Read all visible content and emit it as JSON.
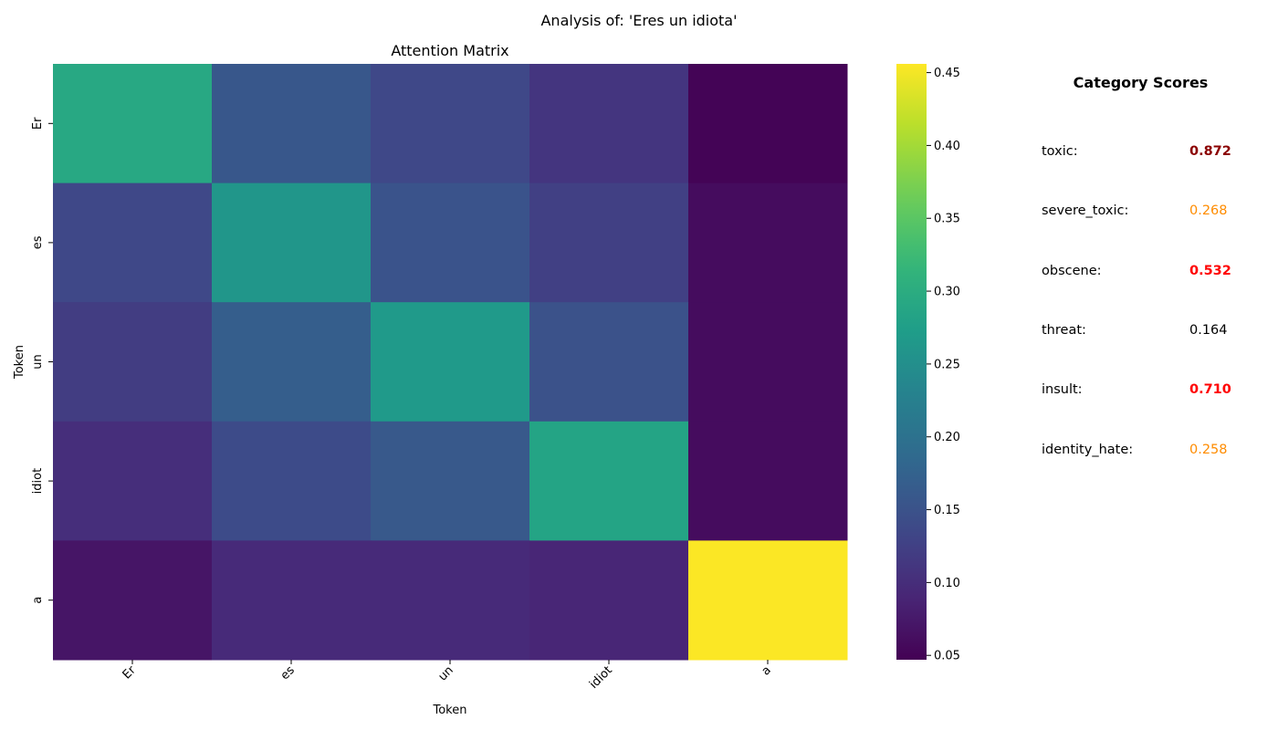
{
  "title": "Analysis of: 'Eres un idiota'",
  "chart_data": {
    "type": "heatmap",
    "title": "Attention Matrix",
    "xlabel": "Token",
    "ylabel": "Token",
    "x_categories": [
      "Er",
      "es",
      "un",
      "idiot",
      "a"
    ],
    "y_categories": [
      "Er",
      "es",
      "un",
      "idiot",
      "a"
    ],
    "values": [
      [
        0.292,
        0.158,
        0.135,
        0.11,
        0.05
      ],
      [
        0.135,
        0.262,
        0.152,
        0.125,
        0.06
      ],
      [
        0.12,
        0.168,
        0.268,
        0.15,
        0.06
      ],
      [
        0.1,
        0.14,
        0.16,
        0.285,
        0.06
      ],
      [
        0.07,
        0.095,
        0.095,
        0.09,
        0.455
      ]
    ],
    "colormap": "viridis",
    "vmin": 0.047,
    "vmax": 0.456,
    "colorbar_ticks": [
      0.05,
      0.1,
      0.15,
      0.2,
      0.25,
      0.3,
      0.35,
      0.4,
      0.45
    ],
    "colorbar_tick_labels": [
      "0.05",
      "0.10",
      "0.15",
      "0.20",
      "0.25",
      "0.30",
      "0.35",
      "0.40",
      "0.45"
    ]
  },
  "category_scores": {
    "title": "Category Scores",
    "items": [
      {
        "label": "toxic:",
        "value": "0.872",
        "color": "#8b0000",
        "bold": true
      },
      {
        "label": "severe_toxic:",
        "value": "0.268",
        "color": "#ff8c00",
        "bold": false
      },
      {
        "label": "obscene:",
        "value": "0.532",
        "color": "#ff0000",
        "bold": true
      },
      {
        "label": "threat:",
        "value": "0.164",
        "color": "#000000",
        "bold": false
      },
      {
        "label": "insult:",
        "value": "0.710",
        "color": "#ff0000",
        "bold": true
      },
      {
        "label": "identity_hate:",
        "value": "0.258",
        "color": "#ff8c00",
        "bold": false
      }
    ]
  }
}
